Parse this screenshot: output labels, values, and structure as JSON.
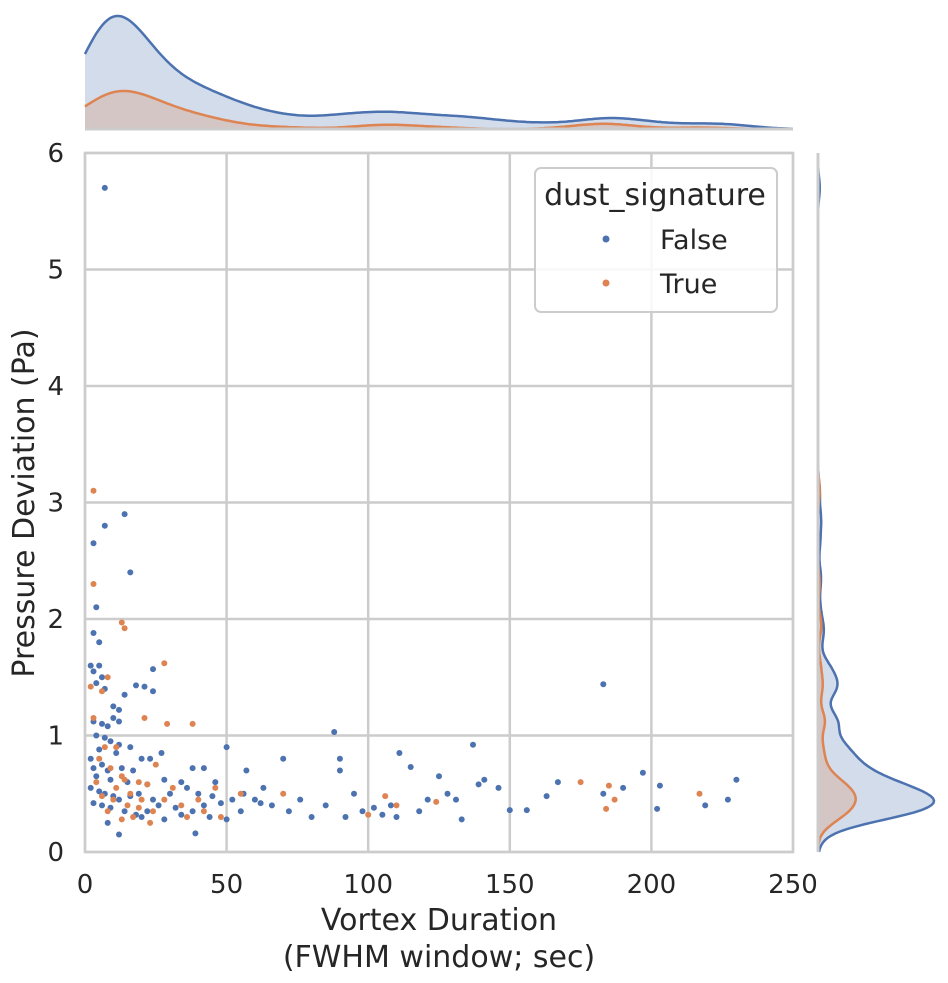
{
  "chart_data": {
    "type": "scatter",
    "subtype": "jointplot",
    "xlabel_line1": "Vortex Duration",
    "xlabel_line2": "(FWHM window; sec)",
    "ylabel": "Pressure Deviation (Pa)",
    "xlim": [
      0,
      250
    ],
    "ylim": [
      0,
      6
    ],
    "xticks": [
      "0",
      "50",
      "100",
      "150",
      "200",
      "250"
    ],
    "yticks": [
      "0",
      "1",
      "2",
      "3",
      "4",
      "5",
      "6"
    ],
    "grid": true,
    "legend": {
      "title": "dust_signature",
      "placement": "top-right"
    },
    "series": [
      {
        "name": "False",
        "color": "#4c72b0",
        "points": [
          [
            7,
            5.7
          ],
          [
            14,
            2.9
          ],
          [
            7,
            2.8
          ],
          [
            3,
            2.65
          ],
          [
            16,
            2.4
          ],
          [
            4,
            2.1
          ],
          [
            3,
            1.88
          ],
          [
            5,
            1.8
          ],
          [
            2,
            1.6
          ],
          [
            5,
            1.6
          ],
          [
            3,
            1.55
          ],
          [
            6,
            1.5
          ],
          [
            24,
            1.57
          ],
          [
            18,
            1.43
          ],
          [
            21,
            1.42
          ],
          [
            4,
            1.45
          ],
          [
            7,
            1.4
          ],
          [
            10,
            1.25
          ],
          [
            12,
            1.22
          ],
          [
            14,
            1.35
          ],
          [
            24,
            1.38
          ],
          [
            3,
            1.12
          ],
          [
            6,
            1.1
          ],
          [
            8,
            1.08
          ],
          [
            10,
            1.15
          ],
          [
            12,
            1.12
          ],
          [
            4,
            1.0
          ],
          [
            7,
            0.98
          ],
          [
            9,
            0.95
          ],
          [
            12,
            0.92
          ],
          [
            5,
            0.88
          ],
          [
            16,
            0.9
          ],
          [
            11,
            0.85
          ],
          [
            23,
            0.8
          ],
          [
            27,
            0.85
          ],
          [
            20,
            0.8
          ],
          [
            2,
            0.8
          ],
          [
            3,
            0.72
          ],
          [
            6,
            0.75
          ],
          [
            8,
            0.7
          ],
          [
            13,
            0.72
          ],
          [
            17,
            0.7
          ],
          [
            4,
            0.65
          ],
          [
            9,
            0.62
          ],
          [
            15,
            0.6
          ],
          [
            22,
            0.58
          ],
          [
            28,
            0.62
          ],
          [
            34,
            0.6
          ],
          [
            2,
            0.55
          ],
          [
            5,
            0.52
          ],
          [
            7,
            0.5
          ],
          [
            10,
            0.48
          ],
          [
            12,
            0.45
          ],
          [
            16,
            0.48
          ],
          [
            19,
            0.5
          ],
          [
            24,
            0.45
          ],
          [
            30,
            0.5
          ],
          [
            36,
            0.55
          ],
          [
            40,
            0.5
          ],
          [
            45,
            0.48
          ],
          [
            3,
            0.42
          ],
          [
            6,
            0.4
          ],
          [
            9,
            0.38
          ],
          [
            14,
            0.35
          ],
          [
            18,
            0.32
          ],
          [
            22,
            0.35
          ],
          [
            26,
            0.4
          ],
          [
            32,
            0.38
          ],
          [
            38,
            0.35
          ],
          [
            42,
            0.4
          ],
          [
            48,
            0.42
          ],
          [
            52,
            0.45
          ],
          [
            8,
            0.25
          ],
          [
            12,
            0.15
          ],
          [
            20,
            0.3
          ],
          [
            28,
            0.28
          ],
          [
            34,
            0.32
          ],
          [
            39,
            0.16
          ],
          [
            44,
            0.3
          ],
          [
            50,
            0.28
          ],
          [
            50,
            0.9
          ],
          [
            57,
            0.7
          ],
          [
            63,
            0.55
          ],
          [
            56,
            0.5
          ],
          [
            60,
            0.45
          ],
          [
            66,
            0.4
          ],
          [
            72,
            0.35
          ],
          [
            76,
            0.45
          ],
          [
            80,
            0.3
          ],
          [
            85,
            0.4
          ],
          [
            88,
            1.03
          ],
          [
            90,
            0.8
          ],
          [
            90,
            0.7
          ],
          [
            92,
            0.3
          ],
          [
            95,
            0.5
          ],
          [
            98,
            0.35
          ],
          [
            102,
            0.38
          ],
          [
            105,
            0.32
          ],
          [
            108,
            0.4
          ],
          [
            110,
            0.3
          ],
          [
            111,
            0.85
          ],
          [
            115,
            0.73
          ],
          [
            118,
            0.35
          ],
          [
            121,
            0.45
          ],
          [
            125,
            0.65
          ],
          [
            128,
            0.5
          ],
          [
            131,
            0.45
          ],
          [
            133,
            0.28
          ],
          [
            137,
            0.92
          ],
          [
            139,
            0.58
          ],
          [
            141,
            0.62
          ],
          [
            146,
            0.55
          ],
          [
            150,
            0.36
          ],
          [
            156,
            0.36
          ],
          [
            163,
            0.48
          ],
          [
            167,
            0.6
          ],
          [
            183,
            1.44
          ],
          [
            183,
            0.5
          ],
          [
            190,
            0.55
          ],
          [
            197,
            0.68
          ],
          [
            202,
            0.37
          ],
          [
            203,
            0.57
          ],
          [
            219,
            0.4
          ],
          [
            227,
            0.45
          ],
          [
            230,
            0.62
          ],
          [
            70,
            0.8
          ],
          [
            62,
            0.42
          ],
          [
            46,
            0.6
          ],
          [
            55,
            0.35
          ],
          [
            42,
            0.72
          ],
          [
            38,
            0.72
          ]
        ]
      },
      {
        "name": "True",
        "color": "#dd8452",
        "points": [
          [
            3,
            3.1
          ],
          [
            3,
            2.3
          ],
          [
            13,
            1.97
          ],
          [
            14,
            1.92
          ],
          [
            2,
            1.42
          ],
          [
            6,
            1.38
          ],
          [
            8,
            1.5
          ],
          [
            28,
            1.62
          ],
          [
            21,
            1.15
          ],
          [
            29,
            1.1
          ],
          [
            38,
            1.1
          ],
          [
            3,
            1.15
          ],
          [
            7,
            0.9
          ],
          [
            11,
            0.9
          ],
          [
            25,
            0.75
          ],
          [
            5,
            0.8
          ],
          [
            9,
            0.72
          ],
          [
            13,
            0.65
          ],
          [
            19,
            0.6
          ],
          [
            4,
            0.6
          ],
          [
            11,
            0.55
          ],
          [
            16,
            0.5
          ],
          [
            22,
            0.58
          ],
          [
            31,
            0.55
          ],
          [
            6,
            0.48
          ],
          [
            10,
            0.45
          ],
          [
            15,
            0.4
          ],
          [
            19,
            0.38
          ],
          [
            24,
            0.35
          ],
          [
            28,
            0.45
          ],
          [
            34,
            0.4
          ],
          [
            40,
            0.45
          ],
          [
            46,
            0.55
          ],
          [
            8,
            0.35
          ],
          [
            13,
            0.28
          ],
          [
            17,
            0.3
          ],
          [
            23,
            0.25
          ],
          [
            36,
            0.3
          ],
          [
            42,
            0.35
          ],
          [
            48,
            0.3
          ],
          [
            55,
            0.5
          ],
          [
            70,
            0.5
          ],
          [
            100,
            0.32
          ],
          [
            106,
            0.48
          ],
          [
            110,
            0.4
          ],
          [
            124,
            0.43
          ],
          [
            175,
            0.6
          ],
          [
            184,
            0.37
          ],
          [
            185,
            0.57
          ],
          [
            187,
            0.45
          ],
          [
            217,
            0.5
          ],
          [
            14,
            0.62
          ],
          [
            20,
            0.45
          ]
        ]
      }
    ]
  },
  "legend": {
    "title": "dust_signature",
    "items": [
      "False",
      "True"
    ]
  },
  "colors": {
    "false": "#4c72b0",
    "true": "#dd8452",
    "grid": "#cccccc"
  }
}
